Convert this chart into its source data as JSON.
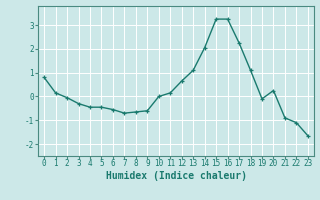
{
  "x": [
    0,
    1,
    2,
    3,
    4,
    5,
    6,
    7,
    8,
    9,
    10,
    11,
    12,
    13,
    14,
    15,
    16,
    17,
    18,
    19,
    20,
    21,
    22,
    23
  ],
  "y": [
    0.8,
    0.15,
    -0.05,
    -0.3,
    -0.45,
    -0.45,
    -0.55,
    -0.7,
    -0.65,
    -0.6,
    0.0,
    0.15,
    0.65,
    1.1,
    2.05,
    3.25,
    3.25,
    2.25,
    1.1,
    -0.1,
    0.25,
    -0.9,
    -1.1,
    -1.65
  ],
  "line_color": "#1a7a6e",
  "marker": "+",
  "marker_size": 3,
  "line_width": 1.0,
  "xlabel": "Humidex (Indice chaleur)",
  "xlim": [
    -0.5,
    23.5
  ],
  "ylim": [
    -2.5,
    3.8
  ],
  "yticks": [
    -2,
    -1,
    0,
    1,
    2,
    3
  ],
  "xticks": [
    0,
    1,
    2,
    3,
    4,
    5,
    6,
    7,
    8,
    9,
    10,
    11,
    12,
    13,
    14,
    15,
    16,
    17,
    18,
    19,
    20,
    21,
    22,
    23
  ],
  "bg_color": "#cce8e8",
  "grid_color": "#ffffff",
  "tick_label_fontsize": 5.5,
  "xlabel_fontsize": 7.0,
  "tick_color": "#1a7a6e",
  "spine_color": "#4a8a80",
  "grid_linewidth": 0.7
}
